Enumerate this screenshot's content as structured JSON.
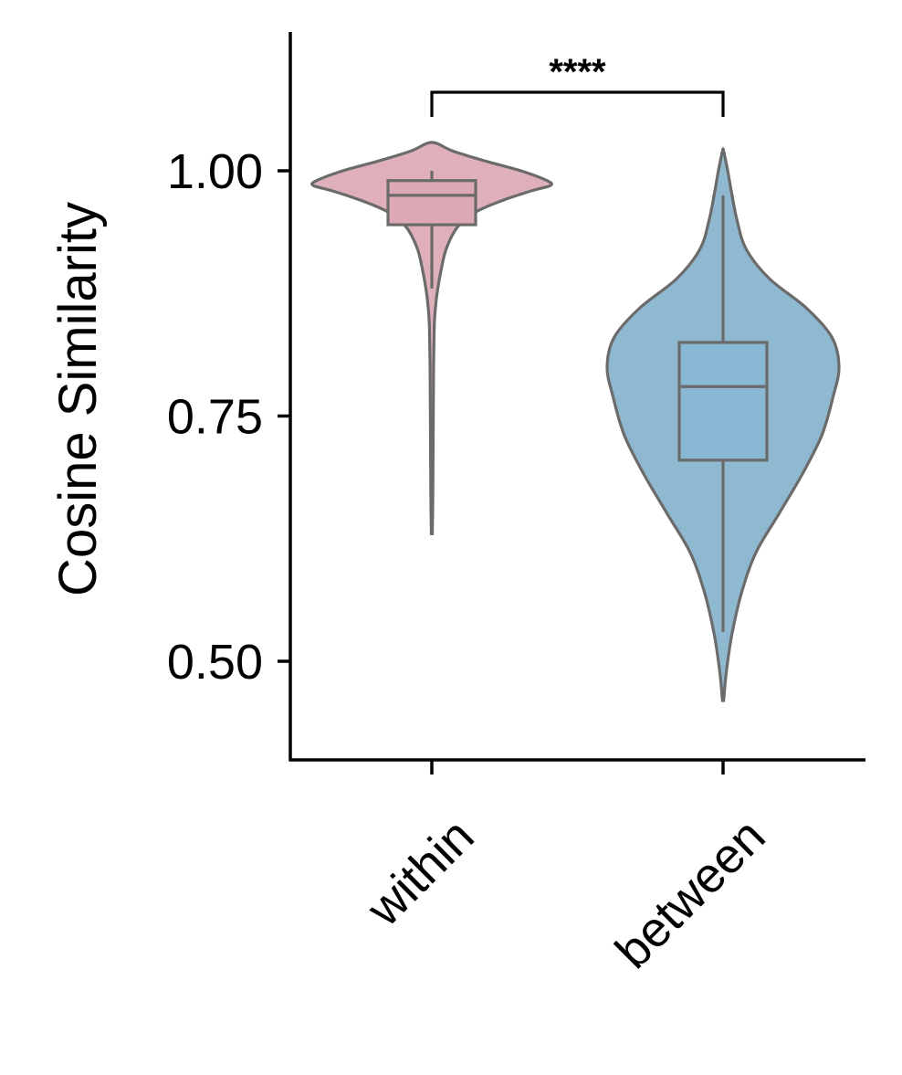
{
  "chart_data": {
    "type": "violin",
    "title": "",
    "xlabel": "",
    "ylabel": "Cosine Similarity",
    "ylim": [
      0.4,
      1.14
    ],
    "yticks": [
      0.5,
      0.75,
      1.0
    ],
    "ytick_labels": [
      "0.50",
      "0.75",
      "1.00"
    ],
    "categories": [
      "within",
      "between"
    ],
    "grid": false,
    "series": [
      {
        "category": "within",
        "color": "#dfb0ba",
        "min": 0.63,
        "whisker_low": 0.88,
        "q1": 0.945,
        "median": 0.975,
        "q3": 0.99,
        "whisker_high": 1.0,
        "max": 1.028,
        "density_profile": [
          [
            0.63,
            0.004
          ],
          [
            0.66,
            0.008
          ],
          [
            0.7,
            0.01
          ],
          [
            0.75,
            0.012
          ],
          [
            0.8,
            0.015
          ],
          [
            0.84,
            0.02
          ],
          [
            0.86,
            0.03
          ],
          [
            0.88,
            0.05
          ],
          [
            0.9,
            0.08
          ],
          [
            0.92,
            0.12
          ],
          [
            0.94,
            0.2
          ],
          [
            0.95,
            0.28
          ],
          [
            0.96,
            0.4
          ],
          [
            0.97,
            0.6
          ],
          [
            0.98,
            0.85
          ],
          [
            0.985,
            1.0
          ],
          [
            0.99,
            0.97
          ],
          [
            1.0,
            0.75
          ],
          [
            1.01,
            0.45
          ],
          [
            1.02,
            0.18
          ],
          [
            1.028,
            0.04
          ]
        ]
      },
      {
        "category": "between",
        "color": "#8fb8d1",
        "min": 0.46,
        "whisker_low": 0.53,
        "q1": 0.705,
        "median": 0.78,
        "q3": 0.825,
        "whisker_high": 0.975,
        "max": 1.02,
        "density_profile": [
          [
            0.46,
            0.005
          ],
          [
            0.48,
            0.02
          ],
          [
            0.5,
            0.04
          ],
          [
            0.53,
            0.08
          ],
          [
            0.57,
            0.16
          ],
          [
            0.61,
            0.28
          ],
          [
            0.65,
            0.48
          ],
          [
            0.69,
            0.68
          ],
          [
            0.73,
            0.85
          ],
          [
            0.77,
            0.95
          ],
          [
            0.8,
            1.0
          ],
          [
            0.83,
            0.94
          ],
          [
            0.86,
            0.72
          ],
          [
            0.89,
            0.4
          ],
          [
            0.92,
            0.2
          ],
          [
            0.95,
            0.12
          ],
          [
            0.98,
            0.07
          ],
          [
            1.0,
            0.04
          ],
          [
            1.02,
            0.005
          ]
        ]
      }
    ],
    "annotation": {
      "text": "****",
      "between": [
        "within",
        "between"
      ],
      "y": 1.08
    }
  }
}
